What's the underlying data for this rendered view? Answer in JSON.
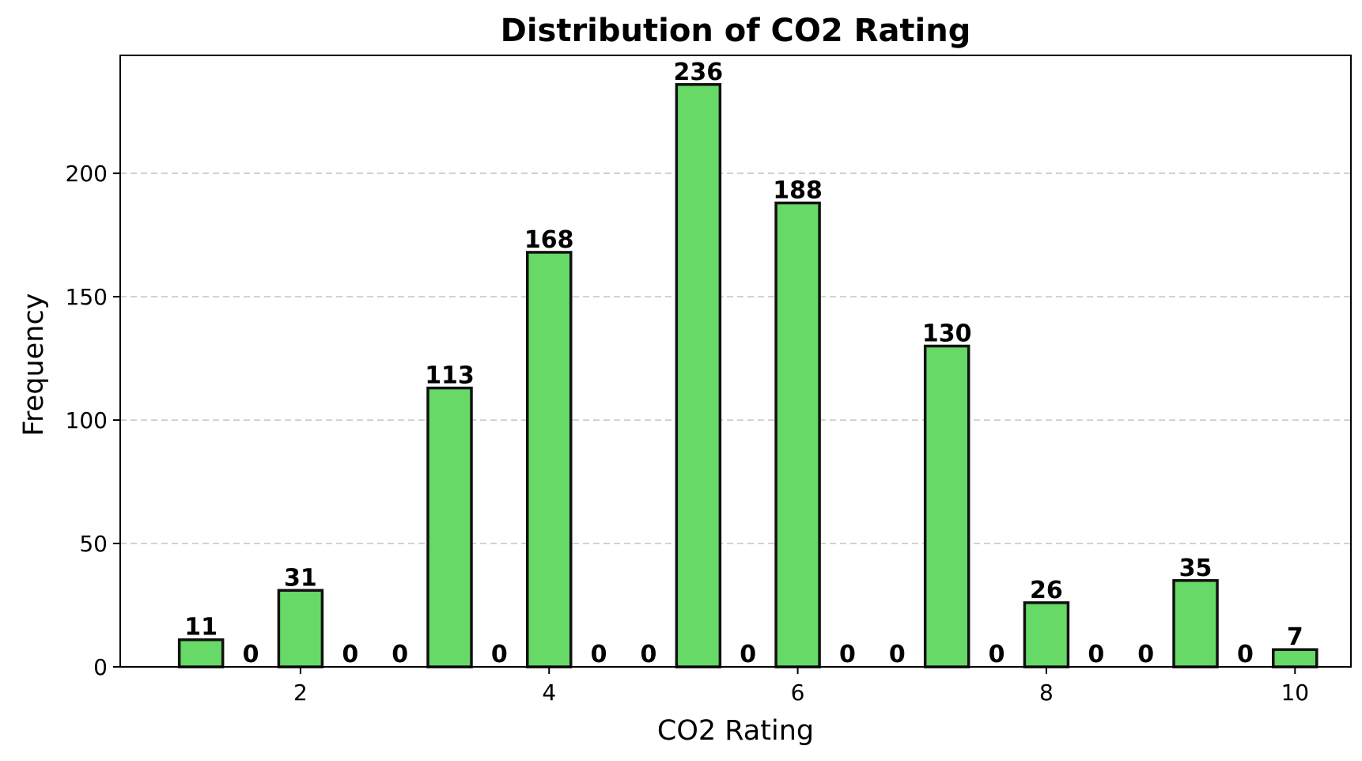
{
  "chart_data": {
    "type": "bar",
    "title": "Distribution of CO2 Rating",
    "xlabel": "CO2 Rating",
    "ylabel": "Frequency",
    "bar_color": "#66d966",
    "edge_color": "#111111",
    "grid": "y, dashed",
    "xlim": [
      0.55,
      10.45
    ],
    "ylim": [
      0,
      247.8
    ],
    "xticks": [
      2,
      4,
      6,
      8,
      10
    ],
    "yticks": [
      0,
      50,
      100,
      150,
      200
    ],
    "bins": [
      {
        "start": 1.0,
        "end": 1.4,
        "value": 11
      },
      {
        "start": 1.4,
        "end": 1.8,
        "value": 0
      },
      {
        "start": 1.8,
        "end": 2.2,
        "value": 31
      },
      {
        "start": 2.2,
        "end": 2.6,
        "value": 0
      },
      {
        "start": 2.6,
        "end": 3.0,
        "value": 0
      },
      {
        "start": 3.0,
        "end": 3.4,
        "value": 113
      },
      {
        "start": 3.4,
        "end": 3.8,
        "value": 0
      },
      {
        "start": 3.8,
        "end": 4.2,
        "value": 168
      },
      {
        "start": 4.2,
        "end": 4.6,
        "value": 0
      },
      {
        "start": 4.6,
        "end": 5.0,
        "value": 0
      },
      {
        "start": 5.0,
        "end": 5.4,
        "value": 236
      },
      {
        "start": 5.4,
        "end": 5.8,
        "value": 0
      },
      {
        "start": 5.8,
        "end": 6.2,
        "value": 188
      },
      {
        "start": 6.2,
        "end": 6.6,
        "value": 0
      },
      {
        "start": 6.6,
        "end": 7.0,
        "value": 0
      },
      {
        "start": 7.0,
        "end": 7.4,
        "value": 130
      },
      {
        "start": 7.4,
        "end": 7.8,
        "value": 0
      },
      {
        "start": 7.8,
        "end": 8.2,
        "value": 26
      },
      {
        "start": 8.2,
        "end": 8.6,
        "value": 0
      },
      {
        "start": 8.6,
        "end": 9.0,
        "value": 0
      },
      {
        "start": 9.0,
        "end": 9.4,
        "value": 35
      },
      {
        "start": 9.4,
        "end": 9.8,
        "value": 0
      },
      {
        "start": 9.8,
        "end": 10.2,
        "value": 7
      }
    ]
  }
}
